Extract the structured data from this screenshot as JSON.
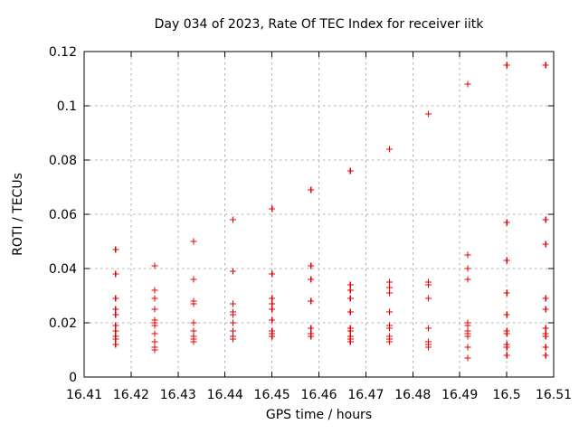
{
  "colors": {
    "background": "#ffffff",
    "axis": "#000000",
    "grid": "#b0b0b0",
    "text": "#000000",
    "marker": "#e60000"
  },
  "chart_data": {
    "type": "scatter",
    "title": "Day 034 of 2023, Rate Of TEC Index for receiver iitk",
    "xlabel": "GPS time / hours",
    "ylabel": "ROTI / TECUs",
    "xlim": [
      16.41,
      16.51
    ],
    "ylim": [
      0,
      0.12
    ],
    "grid": true,
    "legend": false,
    "marker": "plus",
    "marker_color": "#e60000",
    "xticks": [
      {
        "value": 16.41,
        "label": "16.41"
      },
      {
        "value": 16.42,
        "label": "16.42"
      },
      {
        "value": 16.43,
        "label": "16.43"
      },
      {
        "value": 16.44,
        "label": "16.44"
      },
      {
        "value": 16.45,
        "label": "16.45"
      },
      {
        "value": 16.46,
        "label": "16.46"
      },
      {
        "value": 16.47,
        "label": "16.47"
      },
      {
        "value": 16.48,
        "label": "16.48"
      },
      {
        "value": 16.49,
        "label": "16.49"
      },
      {
        "value": 16.5,
        "label": "16.5"
      },
      {
        "value": 16.51,
        "label": "16.51"
      }
    ],
    "yticks": [
      {
        "value": 0,
        "label": "0"
      },
      {
        "value": 0.02,
        "label": "0.02"
      },
      {
        "value": 0.04,
        "label": "0.04"
      },
      {
        "value": 0.06,
        "label": "0.06"
      },
      {
        "value": 0.08,
        "label": "0.08"
      },
      {
        "value": 0.1,
        "label": "0.1"
      },
      {
        "value": 0.12,
        "label": "0.12"
      }
    ],
    "series": [
      {
        "name": "ROTI",
        "clusters": [
          {
            "t": 16.4167,
            "values": [
              0.047,
              0.038,
              0.029,
              0.025,
              0.023,
              0.019,
              0.017,
              0.015,
              0.014,
              0.012
            ]
          },
          {
            "t": 16.425,
            "values": [
              0.041,
              0.032,
              0.029,
              0.025,
              0.021,
              0.02,
              0.019,
              0.016,
              0.013,
              0.011,
              0.01
            ]
          },
          {
            "t": 16.4333,
            "values": [
              0.05,
              0.036,
              0.028,
              0.027,
              0.02,
              0.017,
              0.015,
              0.014,
              0.013
            ]
          },
          {
            "t": 16.4417,
            "values": [
              0.058,
              0.039,
              0.027,
              0.024,
              0.023,
              0.02,
              0.017,
              0.015,
              0.014
            ]
          },
          {
            "t": 16.45,
            "values": [
              0.062,
              0.038,
              0.029,
              0.027,
              0.025,
              0.021,
              0.017,
              0.016,
              0.015
            ]
          },
          {
            "t": 16.4583,
            "values": [
              0.069,
              0.041,
              0.036,
              0.028,
              0.028,
              0.018,
              0.016,
              0.015
            ]
          },
          {
            "t": 16.4667,
            "values": [
              0.076,
              0.034,
              0.032,
              0.029,
              0.024,
              0.018,
              0.017,
              0.015,
              0.014,
              0.013
            ]
          },
          {
            "t": 16.475,
            "values": [
              0.084,
              0.035,
              0.033,
              0.031,
              0.024,
              0.019,
              0.018,
              0.015,
              0.014,
              0.013
            ]
          },
          {
            "t": 16.4833,
            "values": [
              0.097,
              0.035,
              0.034,
              0.029,
              0.018,
              0.018,
              0.013,
              0.012,
              0.011
            ]
          },
          {
            "t": 16.4917,
            "values": [
              0.108,
              0.045,
              0.04,
              0.036,
              0.02,
              0.019,
              0.017,
              0.016,
              0.015,
              0.011,
              0.007
            ]
          },
          {
            "t": 16.5,
            "values": [
              0.115,
              0.057,
              0.043,
              0.031,
              0.023,
              0.017,
              0.016,
              0.012,
              0.011,
              0.008
            ]
          },
          {
            "t": 16.5083,
            "values": [
              0.115,
              0.058,
              0.049,
              0.029,
              0.025,
              0.018,
              0.016,
              0.015,
              0.011,
              0.008
            ]
          }
        ]
      }
    ]
  }
}
